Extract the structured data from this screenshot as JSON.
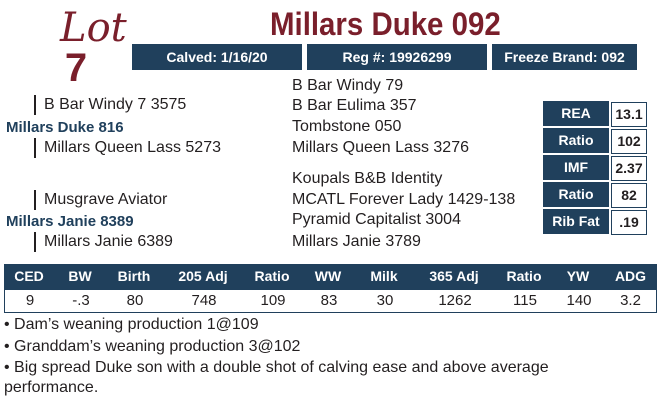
{
  "lot": {
    "word": "Lot",
    "number": "7"
  },
  "animal": {
    "name": "Millars Duke 092"
  },
  "info": {
    "calved": "Calved: 1/16/20",
    "reg": "Reg #: 19926299",
    "freeze_brand": "Freeze Brand: 092"
  },
  "pedigree": {
    "sire_sire": "B Bar Windy 7 3575",
    "sire": "Millars Duke 816",
    "sire_dam": "Millars Queen Lass 5273",
    "sire_sire_sire": "B Bar Windy 79",
    "sire_sire_dam": "B Bar Eulima 357",
    "sire_dam_sire": "Tombstone 050",
    "sire_dam_dam": "Millars Queen Lass 3276",
    "dam_sire": "Musgrave Aviator",
    "dam": "Millars Janie 8389",
    "dam_dam": "Millars Janie 6389",
    "dam_sire_sire": "Koupals B&B Identity",
    "dam_sire_dam": "MCATL Forever Lady 1429-138",
    "dam_dam_sire": "Pyramid Capitalist 3004",
    "dam_dam_dam": "Millars Janie 3789"
  },
  "carcass": [
    {
      "label": "REA",
      "value": "13.1"
    },
    {
      "label": "Ratio",
      "value": "102"
    },
    {
      "label": "IMF",
      "value": "2.37"
    },
    {
      "label": "Ratio",
      "value": "82"
    },
    {
      "label": "Rib Fat",
      "value": ".19"
    }
  ],
  "performance": {
    "headers": [
      "CED",
      "BW",
      "Birth",
      "205 Adj",
      "Ratio",
      "WW",
      "Milk",
      "365 Adj",
      "Ratio",
      "YW",
      "ADG"
    ],
    "values": [
      "9",
      "-.3",
      "80",
      "748",
      "109",
      "83",
      "30",
      "1262",
      "115",
      "140",
      "3.2"
    ]
  },
  "notes": [
    "• Dam’s weaning production 1@109",
    "• Granddam’s weaning production 3@102",
    "• Big spread Duke son with a double shot of calving ease and above average performance."
  ]
}
